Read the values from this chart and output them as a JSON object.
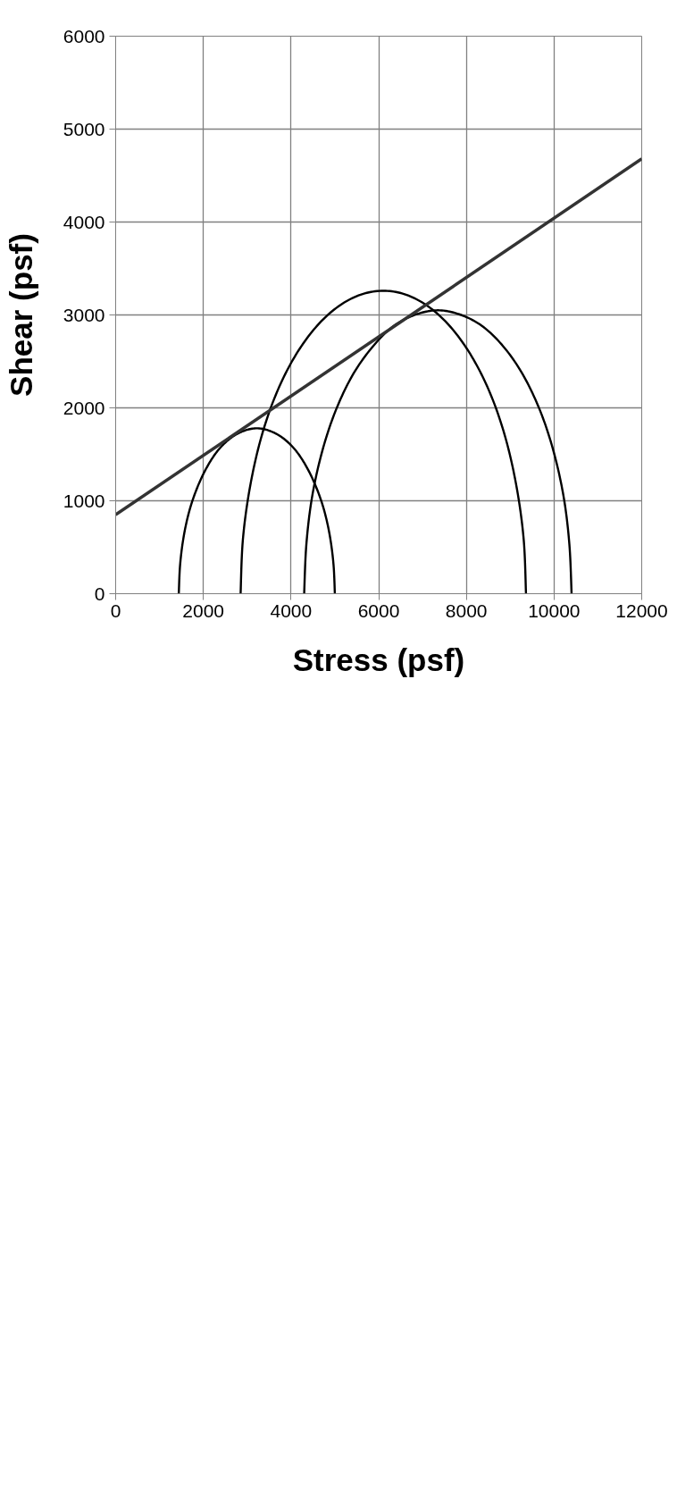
{
  "chart_data": {
    "type": "line",
    "xlabel": "Stress (psf)",
    "ylabel": "Shear (psf)",
    "xlim": [
      0,
      12000
    ],
    "xticks": [
      0,
      2000,
      4000,
      6000,
      8000,
      10000,
      12000
    ],
    "ylim": [
      0,
      6000
    ],
    "yticks": [
      0,
      1000,
      2000,
      3000,
      4000,
      5000,
      6000
    ],
    "grid": true,
    "marker": "none",
    "line_style": "solid",
    "series": [
      {
        "color": "#000000",
        "x": [
          1440,
          1470,
          1550,
          1680,
          1860,
          2080,
          2330,
          2610,
          2910,
          3220,
          3530,
          3830,
          4110,
          4360,
          4580,
          4760,
          4890,
          4970,
          5000
        ],
        "values": [
          0,
          310,
          610,
          890,
          1140,
          1360,
          1540,
          1670,
          1750,
          1780,
          1750,
          1670,
          1540,
          1360,
          1140,
          890,
          610,
          310,
          0
        ]
      },
      {
        "color": "#000000",
        "x": [
          2850,
          2900,
          3050,
          3290,
          3610,
          4010,
          4480,
          4990,
          5540,
          6110,
          6670,
          7220,
          7730,
          8200,
          8600,
          8920,
          9160,
          9310,
          9360
        ],
        "values": [
          0,
          570,
          1110,
          1630,
          2090,
          2490,
          2820,
          3060,
          3210,
          3260,
          3210,
          3060,
          2820,
          2490,
          2090,
          1630,
          1110,
          570,
          0
        ]
      },
      {
        "color": "#000000",
        "x": [
          4300,
          4350,
          4480,
          4710,
          5010,
          5390,
          5830,
          6310,
          6820,
          7350,
          7880,
          8390,
          8880,
          9310,
          9690,
          9990,
          10220,
          10350,
          10400
        ],
        "values": [
          0,
          530,
          1040,
          1530,
          1960,
          2340,
          2640,
          2870,
          3000,
          3050,
          3000,
          2870,
          2640,
          2340,
          1960,
          1530,
          1040,
          530,
          0
        ]
      },
      {
        "color": "#333333",
        "x": [
          0,
          12000
        ],
        "values": [
          850,
          4680
        ]
      }
    ]
  }
}
